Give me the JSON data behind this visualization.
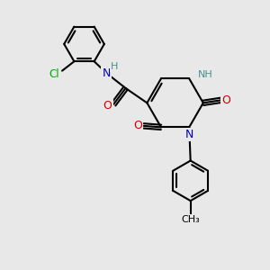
{
  "bg_color": "#e8e8e8",
  "bond_color": "#000000",
  "N_color": "#0000cc",
  "O_color": "#cc0000",
  "Cl_color": "#00aa00",
  "NH_color": "#4a9090",
  "line_width": 1.5,
  "figsize": [
    3.0,
    3.0
  ],
  "dpi": 100,
  "xlim": [
    0,
    10
  ],
  "ylim": [
    0,
    10
  ]
}
